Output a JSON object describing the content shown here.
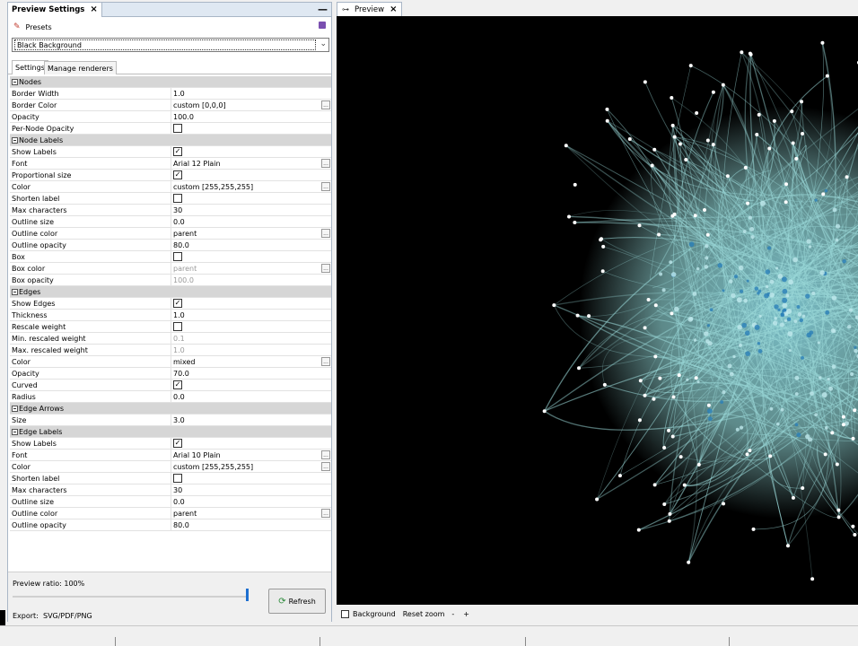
{
  "left_panel": {
    "tab_title": "Preview Settings",
    "presets_label": "Presets",
    "preset_selected": "Black Background",
    "subtabs": [
      "Settings",
      "Manage renderers"
    ],
    "sections": [
      {
        "title": "Nodes",
        "rows": [
          {
            "name": "Border Width",
            "value": "1.0"
          },
          {
            "name": "Border Color",
            "value": "custom [0,0,0]",
            "dots": true
          },
          {
            "name": "Opacity",
            "value": "100.0"
          },
          {
            "name": "Per-Node Opacity",
            "check": false
          }
        ]
      },
      {
        "title": "Node Labels",
        "rows": [
          {
            "name": "Show Labels",
            "check": true
          },
          {
            "name": "Font",
            "value": "Arial 12 Plain",
            "dots": true
          },
          {
            "name": "Proportional size",
            "check": true
          },
          {
            "name": "Color",
            "value": "custom [255,255,255]",
            "dots": true
          },
          {
            "name": "Shorten label",
            "check": false
          },
          {
            "name": "Max characters",
            "value": "30"
          },
          {
            "name": "Outline size",
            "value": "0.0"
          },
          {
            "name": "Outline color",
            "value": "parent",
            "dots": true
          },
          {
            "name": "Outline opacity",
            "value": "80.0"
          },
          {
            "name": "Box",
            "check": false
          },
          {
            "name": "Box color",
            "value": "parent",
            "dots": true,
            "dim": true
          },
          {
            "name": "Box opacity",
            "value": "100.0",
            "dim": true
          }
        ]
      },
      {
        "title": "Edges",
        "rows": [
          {
            "name": "Show Edges",
            "check": true
          },
          {
            "name": "Thickness",
            "value": "1.0"
          },
          {
            "name": "Rescale weight",
            "check": false
          },
          {
            "name": "Min. rescaled weight",
            "value": "0.1",
            "dim": true
          },
          {
            "name": "Max. rescaled weight",
            "value": "1.0",
            "dim": true
          },
          {
            "name": "Color",
            "value": "mixed",
            "dots": true
          },
          {
            "name": "Opacity",
            "value": "70.0"
          },
          {
            "name": "Curved",
            "check": true
          },
          {
            "name": "Radius",
            "value": "0.0"
          }
        ]
      },
      {
        "title": "Edge Arrows",
        "rows": [
          {
            "name": "Size",
            "value": "3.0"
          }
        ]
      },
      {
        "title": "Edge Labels",
        "rows": [
          {
            "name": "Show Labels",
            "check": true
          },
          {
            "name": "Font",
            "value": "Arial 10 Plain",
            "dots": true
          },
          {
            "name": "Color",
            "value": "custom [255,255,255]",
            "dots": true
          },
          {
            "name": "Shorten label",
            "check": false
          },
          {
            "name": "Max characters",
            "value": "30"
          },
          {
            "name": "Outline size",
            "value": "0.0"
          },
          {
            "name": "Outline color",
            "value": "parent",
            "dots": true
          },
          {
            "name": "Outline opacity",
            "value": "80.0"
          }
        ]
      }
    ],
    "preview_ratio_label": "Preview ratio:",
    "preview_ratio_value": "100%",
    "preview_ratio_fraction": 1.0,
    "refresh_label": "Refresh",
    "export_label": "Export:",
    "export_formats": "SVG/PDF/PNG"
  },
  "right_panel": {
    "tab_title": "Preview",
    "background_label": "Background",
    "reset_zoom_label": "Reset zoom",
    "zoom_out": "-",
    "zoom_in": "+",
    "edge_color": "#9ad8d8",
    "node_color": "#ffffff",
    "core_color": "#2a7fb8"
  }
}
